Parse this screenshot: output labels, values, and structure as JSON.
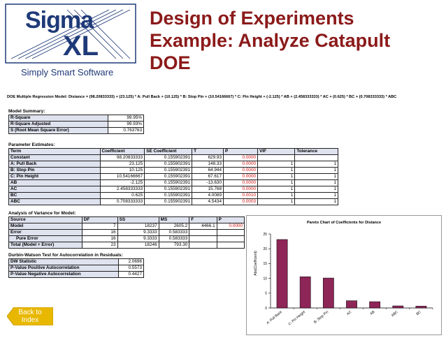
{
  "logo": {
    "word1": "Sigma",
    "word2": "XL",
    "tagline": "Simply Smart Software"
  },
  "title": {
    "line1": "Design of Experiments",
    "line2": "Example: Analyze Catapult",
    "line3": "DOE"
  },
  "formula": "DOE Multiple Regression Model: Distance = (98.20833333) + (23.125) * A: Pull Back + (10.125) * B: Stop Pin + (10.54166667) * C: Pin Height + (-2.125) * AB + (2.458333333) * AC + (0.625) * BC + (0.708333333) * ABC",
  "model_summary": {
    "label": "Model Summary:",
    "rows": [
      {
        "name": "R-Square",
        "value": "99.95%"
      },
      {
        "name": "R-Square Adjusted",
        "value": "99.93%"
      },
      {
        "name": "S (Root Mean Square Error)",
        "value": "0.763763"
      }
    ]
  },
  "parameters": {
    "label": "Parameter Estimates:",
    "headers": [
      "Term",
      "Coefficient",
      "SE Coefficient",
      "T",
      "P",
      "VIF",
      "Tolerance"
    ],
    "rows": [
      [
        "Constant",
        "98.20833333",
        "0.155902391",
        "629.93",
        "0.0000",
        "",
        ""
      ],
      [
        "A: Pull Back",
        "23.125",
        "0.155902391",
        "148.33",
        "0.0000",
        "1",
        "1"
      ],
      [
        "B: Stop Pin",
        "10.125",
        "0.155902391",
        "64.944",
        "0.0000",
        "1",
        "1"
      ],
      [
        "C: Pin Height",
        "10.54166667",
        "0.155902391",
        "67.617",
        "0.0000",
        "1",
        "1"
      ],
      [
        "AB",
        "-2.125",
        "0.155902391",
        "-13.630",
        "0.0000",
        "1",
        "1"
      ],
      [
        "AC",
        "2.458333333",
        "0.155902391",
        "15.768",
        "0.0000",
        "1",
        "1"
      ],
      [
        "BC",
        "0.625",
        "0.155902391",
        "4.0089",
        "0.0010",
        "1",
        "1"
      ],
      [
        "ABC",
        "0.708333333",
        "0.155902391",
        "4.5434",
        "0.0003",
        "1",
        "1"
      ]
    ]
  },
  "anova": {
    "label": "Analysis of Variance for Model:",
    "headers": [
      "Source",
      "DF",
      "SS",
      "MS",
      "F",
      "P"
    ],
    "rows": [
      [
        "Model",
        "7",
        "18237",
        "2605.2",
        "4466.1",
        "0.0000"
      ],
      [
        "Error",
        "16",
        "9.3333",
        "0.583333",
        "",
        ""
      ],
      [
        "Pure Error",
        "16",
        "9.3333",
        "0.583333",
        "",
        ""
      ],
      [
        "Total (Model + Error)",
        "23",
        "18246",
        "793.30",
        "",
        ""
      ]
    ]
  },
  "durbin": {
    "label": "Durbin-Watson Test for Autocorrelation in Residuals:",
    "rows": [
      {
        "name": "DW Statistic",
        "value": "2.0696"
      },
      {
        "name": "P-Value Positive Autocorrelation",
        "value": "0.5573"
      },
      {
        "name": "P-Value Negative Autocorrelation",
        "value": "0.4427"
      }
    ]
  },
  "back_button": {
    "line1": "Back to",
    "line2": "Index"
  },
  "colors": {
    "title": "#8b1a1a",
    "logo": "#1f3a78",
    "bar": "#8e2657",
    "p_value": "#d01010",
    "back_button": "#e8b800"
  },
  "chart_data": {
    "type": "bar",
    "title": "Pareto Chart of Coefficients for Distance",
    "ylabel": "Abs(Coefficient)",
    "xlabel": "",
    "categories": [
      "A: Pull Back",
      "C: Pin Height",
      "B: Stop Pin",
      "AC",
      "AB",
      "ABC",
      "BC"
    ],
    "values": [
      23.125,
      10.54166667,
      10.125,
      2.458333333,
      2.125,
      0.708333333,
      0.625
    ],
    "ylim": [
      0,
      25
    ],
    "yticks": [
      "0",
      "5",
      "10",
      "15",
      "20",
      "25"
    ],
    "grid": false,
    "legend": "none"
  }
}
